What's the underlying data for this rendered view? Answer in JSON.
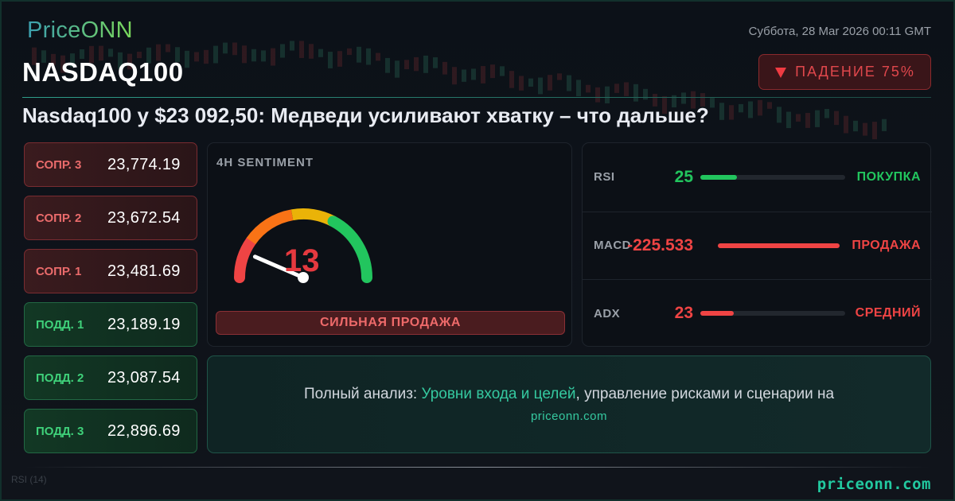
{
  "header": {
    "logo": "PriceONN",
    "date": "Суббота, 28 Mar 2026 00:11 GMT",
    "ticker": "NASDAQ100",
    "trend_label": "ПАДЕНИЕ 75%",
    "trend_icon": "triangle-down-icon",
    "headline": "Nasdaq100 у $23 092,50: Медведи усиливают хватку – что дальше?"
  },
  "levels": [
    {
      "label": "СОПР. 3",
      "value": "23,774.19",
      "type": "resistance"
    },
    {
      "label": "СОПР. 2",
      "value": "23,672.54",
      "type": "resistance"
    },
    {
      "label": "СОПР. 1",
      "value": "23,481.69",
      "type": "resistance"
    },
    {
      "label": "ПОДД. 1",
      "value": "23,189.19",
      "type": "support"
    },
    {
      "label": "ПОДД. 2",
      "value": "23,087.54",
      "type": "support"
    },
    {
      "label": "ПОДД. 3",
      "value": "22,896.69",
      "type": "support"
    }
  ],
  "sentiment": {
    "title": "4H SENTIMENT",
    "value": "13",
    "gauge_value": 13,
    "gauge_max": 100,
    "label": "СИЛЬНАЯ ПРОДАЖА"
  },
  "indicators": [
    {
      "name": "RSI",
      "value": "25",
      "fill_percent": 25,
      "signal": "ПОКУПКА",
      "color": "#22c55e"
    },
    {
      "name": "MACD",
      "value": "-225.533",
      "fill_percent": 100,
      "signal": "ПРОДАЖА",
      "color": "#ef4444"
    },
    {
      "name": "ADX",
      "value": "23",
      "fill_percent": 23,
      "signal": "СРЕДНИЙ",
      "color": "#ef4444"
    }
  ],
  "cta": {
    "prefix": "Полный анализ: ",
    "highlight": "Уровни входа и целей",
    "suffix": ", управление рисками и сценарии на",
    "site": "priceonn.com"
  },
  "footer": {
    "bg_rsi": "RSI (14)",
    "url": "priceonn.com"
  },
  "colors": {
    "accent": "#22c9a0",
    "bear": "#e5393f",
    "bull": "#22c55e"
  }
}
